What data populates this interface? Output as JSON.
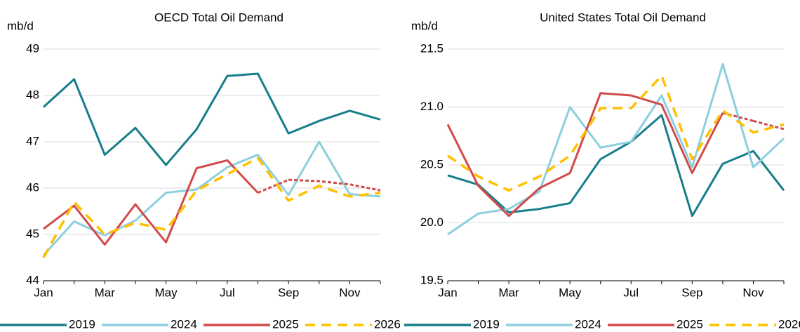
{
  "chart_data": [
    {
      "type": "line",
      "title": "OECD Total Oil Demand",
      "y_label": "mb/d",
      "categories": [
        "Jan",
        null,
        "Mar",
        null,
        "May",
        null,
        "Jul",
        null,
        "Sep",
        null,
        "Nov",
        null
      ],
      "ylim": [
        44,
        49
      ],
      "yticks": [
        44,
        45,
        46,
        47,
        48,
        49
      ],
      "grid": true,
      "series": [
        {
          "name": "2019",
          "color": "#177e89",
          "values": [
            47.75,
            48.35,
            46.72,
            47.3,
            46.5,
            47.27,
            48.42,
            48.47,
            47.18,
            47.45,
            47.67,
            47.48
          ]
        },
        {
          "name": "2024",
          "color": "#8ccfe0",
          "values": [
            44.55,
            45.28,
            44.98,
            45.3,
            45.9,
            45.97,
            46.45,
            46.72,
            45.85,
            47.0,
            45.87,
            45.82
          ]
        },
        {
          "name": "2025",
          "color": "#d04a4a",
          "dash_from": 8,
          "values": [
            45.12,
            45.62,
            44.78,
            45.65,
            44.83,
            46.43,
            46.6,
            45.9,
            46.18,
            46.15,
            46.08,
            45.95
          ]
        },
        {
          "name": "2026",
          "color": "#ffc000",
          "dashed": true,
          "values": [
            44.5,
            45.7,
            45.0,
            45.25,
            45.1,
            45.95,
            46.3,
            46.65,
            45.73,
            46.05,
            45.82,
            45.9
          ]
        }
      ]
    },
    {
      "type": "line",
      "title": "United States Total Oil Demand",
      "y_label": "mb/d",
      "categories": [
        "Jan",
        null,
        "Mar",
        null,
        "May",
        null,
        "Jul",
        null,
        "Sep",
        null,
        "Nov",
        null
      ],
      "ylim": [
        19.5,
        21.5
      ],
      "yticks": [
        19.5,
        {
          "value": 20,
          "label": "20.0"
        },
        20.5,
        {
          "value": 21,
          "label": "21.0"
        },
        21.5
      ],
      "grid": true,
      "series": [
        {
          "name": "2019",
          "color": "#177e89",
          "values": [
            20.41,
            20.33,
            20.09,
            20.12,
            20.17,
            20.55,
            20.7,
            20.93,
            20.06,
            20.51,
            20.62,
            20.28
          ]
        },
        {
          "name": "2024",
          "color": "#8ccfe0",
          "values": [
            19.9,
            20.08,
            20.12,
            20.27,
            21.0,
            20.65,
            20.7,
            21.1,
            20.48,
            21.37,
            20.48,
            20.73
          ]
        },
        {
          "name": "2025",
          "color": "#d04a4a",
          "dash_from": 10,
          "values": [
            20.85,
            20.32,
            20.06,
            20.3,
            20.43,
            21.12,
            21.1,
            21.02,
            20.43,
            20.95,
            20.88,
            20.81
          ]
        },
        {
          "name": "2026",
          "color": "#ffc000",
          "dashed": true,
          "values": [
            20.58,
            20.4,
            20.28,
            20.4,
            20.58,
            20.99,
            20.99,
            21.27,
            20.55,
            20.97,
            20.78,
            20.85
          ]
        }
      ]
    }
  ]
}
